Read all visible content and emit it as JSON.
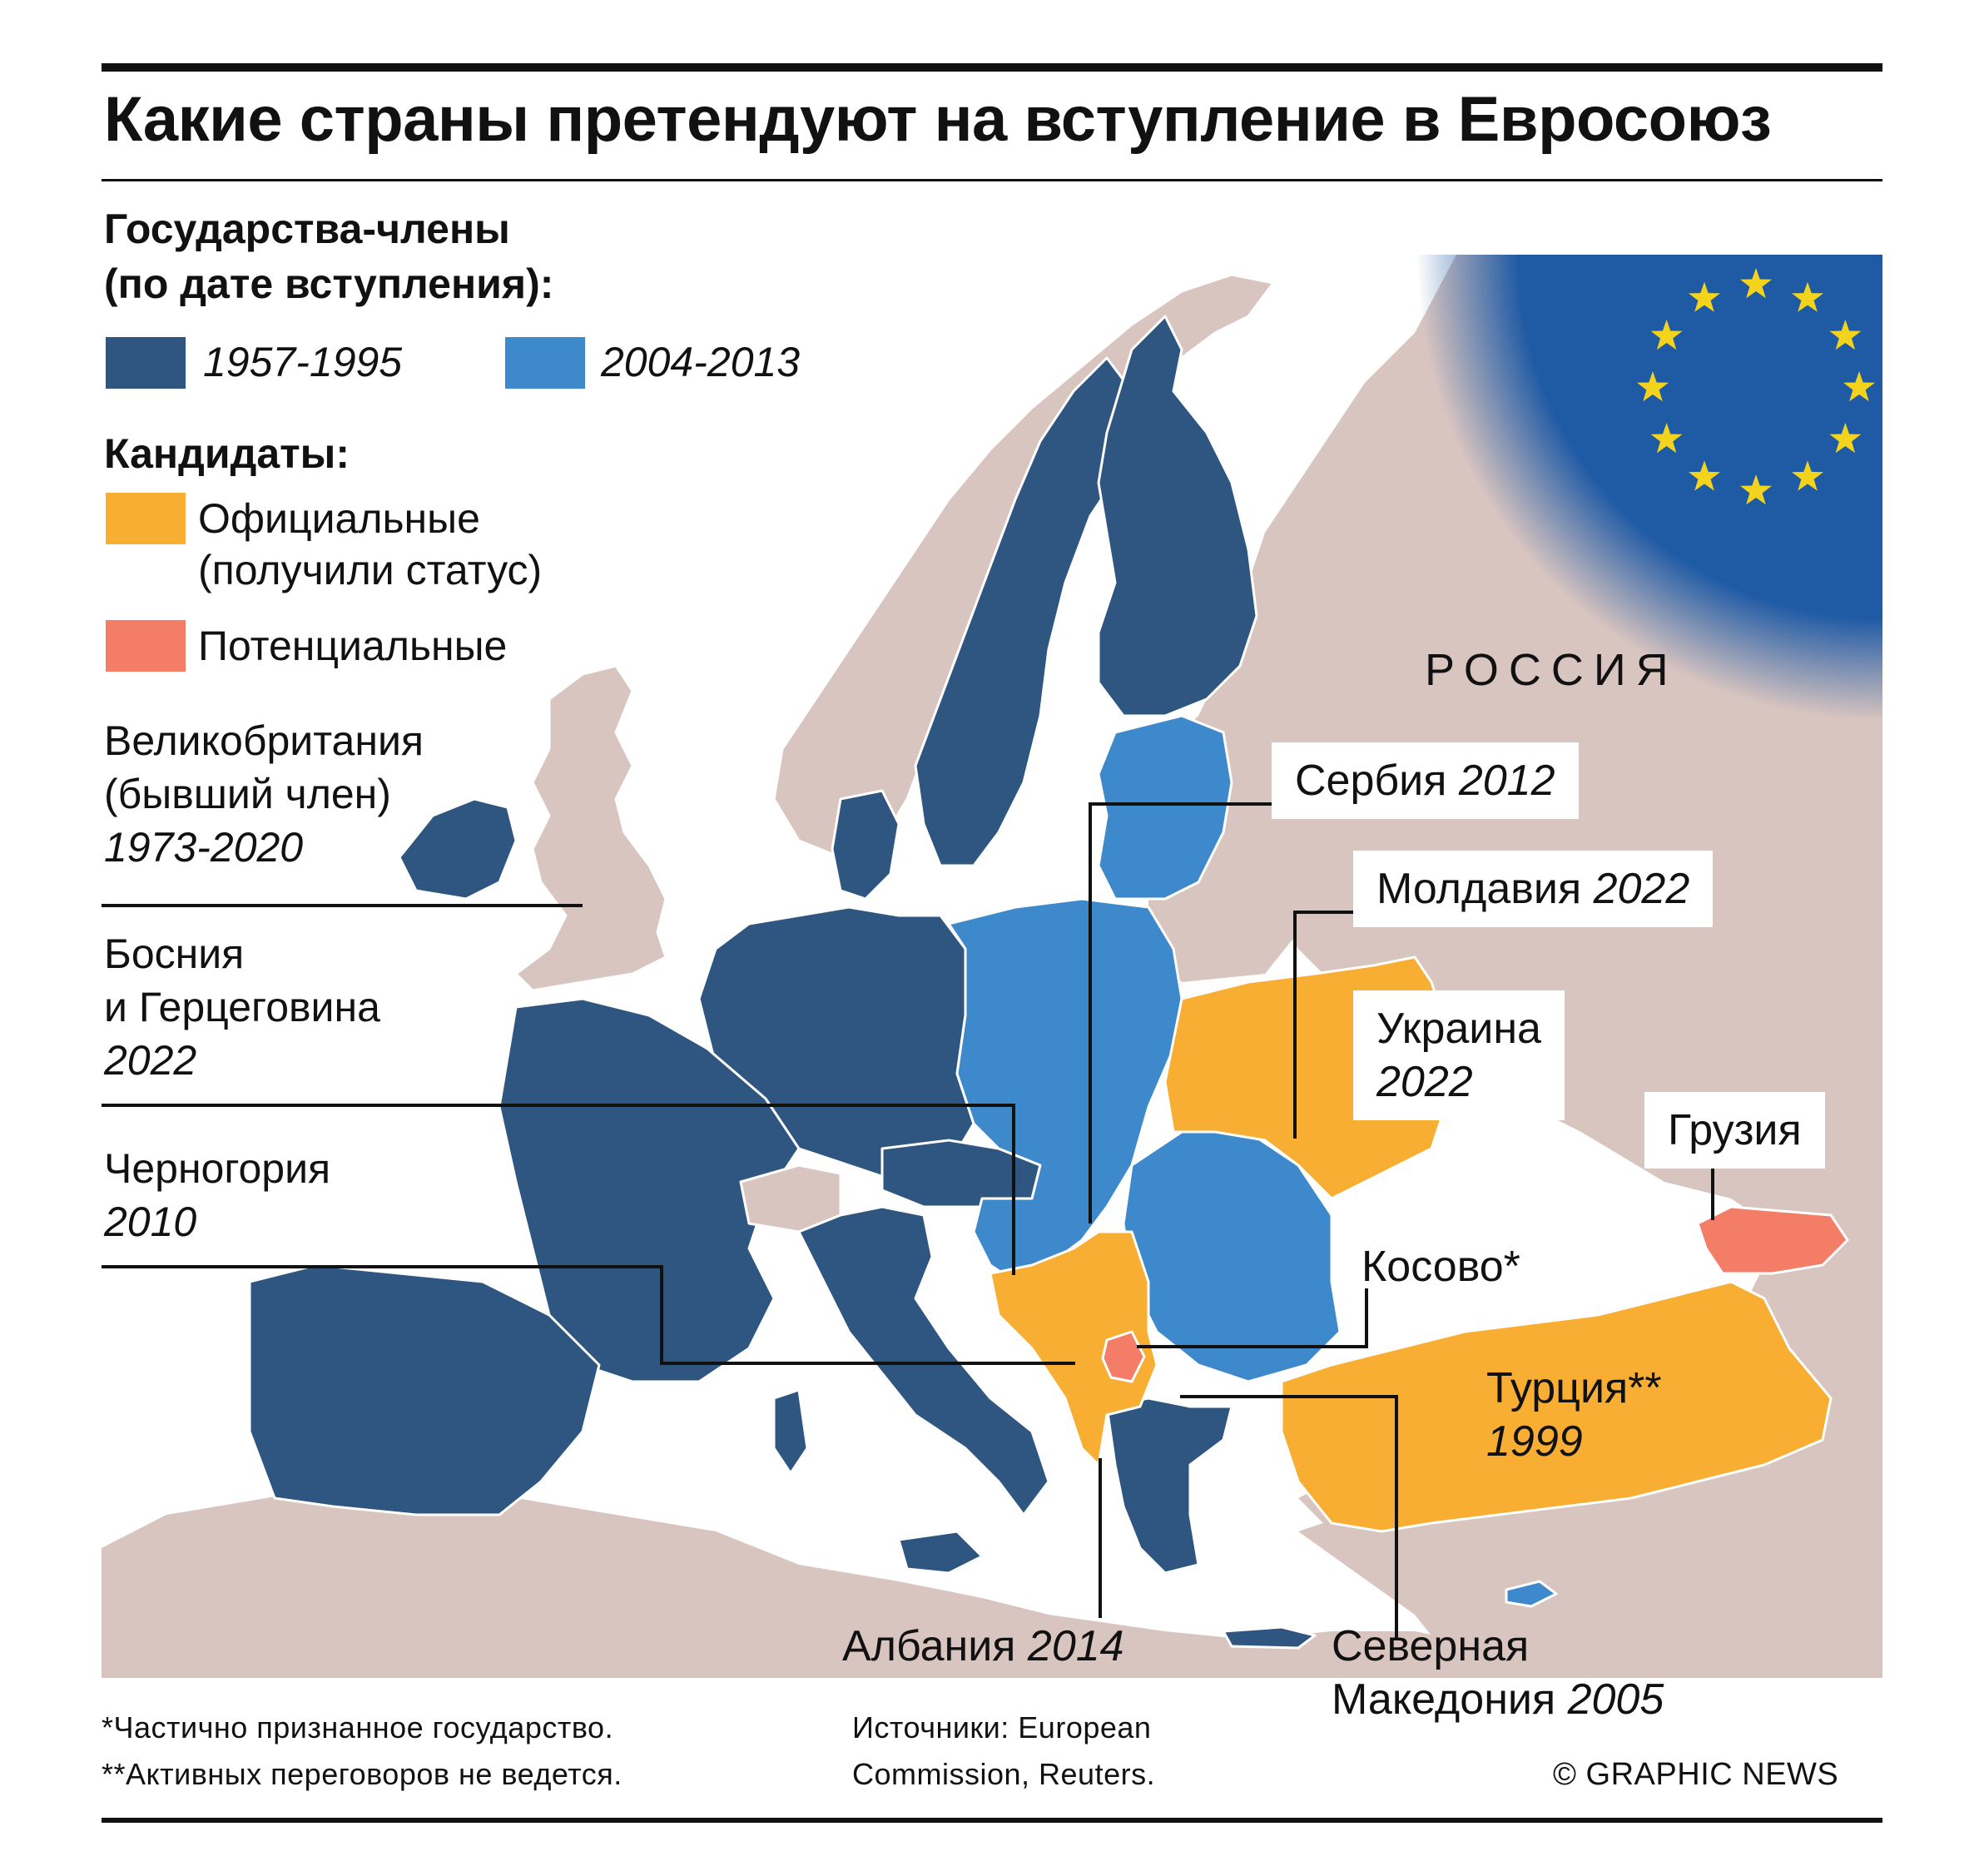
{
  "title": "Какие страны претендуют на вступление в Евросоюз",
  "legend": {
    "members_heading_1": "Государства-члены",
    "members_heading_2": "(по дате вступления):",
    "member_periods": [
      {
        "label": "1957-1995",
        "color": "#2e5680"
      },
      {
        "label": "2004-2013",
        "color": "#3d89cb"
      }
    ],
    "candidates_heading": "Кандидаты:",
    "official_label_1": "Официальные",
    "official_label_2": "(получили статус)",
    "official_color": "#f7ae33",
    "potential_label": "Потенциальные",
    "potential_color": "#f47d67"
  },
  "side_labels": {
    "uk_name_1": "Великобритания",
    "uk_name_2": "(бывший член)",
    "uk_years": "1973-2020",
    "bih_name_1": "Босния",
    "bih_name_2": "и Герцеговина",
    "bih_year": "2022",
    "mne_name": "Черногория",
    "mne_year": "2010"
  },
  "map_labels": {
    "russia": "РОССИЯ",
    "serbia_name": "Сербия",
    "serbia_year": "2012",
    "moldova_name": "Молдавия",
    "moldova_year": "2022",
    "ukraine_name": "Украина",
    "ukraine_year": "2022",
    "georgia_name": "Грузия",
    "kosovo_name": "Косово*",
    "turkey_name": "Турция**",
    "turkey_year": "1999",
    "albania_name": "Албания",
    "albania_year": "2014",
    "nmk_name_1": "Северная",
    "nmk_name_2": "Македония",
    "nmk_year": "2005"
  },
  "colors": {
    "land": "#d9c5c0",
    "sea": "#ffffff",
    "eu_blue": "#1f5aa5",
    "star": "#f3d31b"
  },
  "footer": {
    "note_1": "*Частично признанное государство.",
    "note_2": "**Активных переговоров не ведется.",
    "sources_1": "Источники: European",
    "sources_2": "Commission, Reuters.",
    "credit": "© GRAPHIC NEWS"
  }
}
